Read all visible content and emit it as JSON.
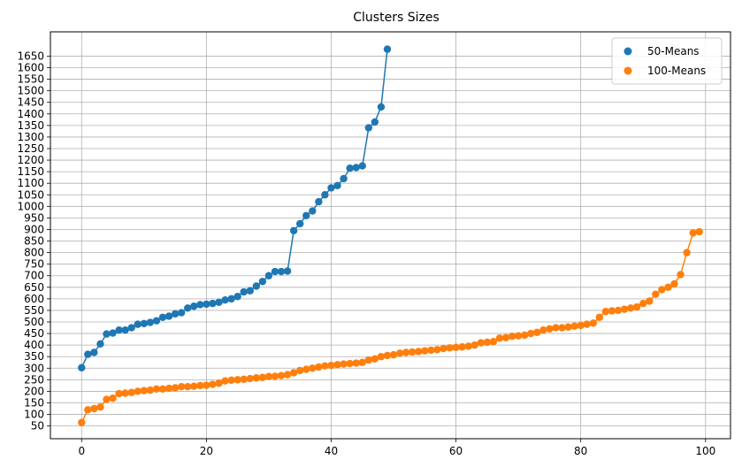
{
  "chart_data": {
    "type": "scatter",
    "title": "Clusters Sizes",
    "xlabel": "",
    "ylabel": "",
    "xlim": [
      -5,
      104
    ],
    "ylim": [
      -5,
      1755
    ],
    "x_ticks": [
      0,
      20,
      40,
      60,
      80,
      100
    ],
    "y_ticks": [
      50,
      100,
      150,
      200,
      250,
      300,
      350,
      400,
      450,
      500,
      550,
      600,
      650,
      700,
      750,
      800,
      850,
      900,
      950,
      1000,
      1050,
      1100,
      1150,
      1200,
      1250,
      1300,
      1350,
      1400,
      1450,
      1500,
      1550,
      1600,
      1650
    ],
    "grid": true,
    "legend_position": "top-right",
    "series": [
      {
        "name": "50-Means",
        "color": "#1f77b4",
        "y": [
          302,
          360,
          368,
          405,
          448,
          452,
          465,
          465,
          475,
          490,
          493,
          498,
          505,
          520,
          525,
          535,
          540,
          560,
          568,
          575,
          577,
          580,
          585,
          595,
          600,
          610,
          630,
          635,
          655,
          675,
          700,
          718,
          718,
          720,
          895,
          925,
          960,
          980,
          1020,
          1050,
          1080,
          1090,
          1120,
          1165,
          1168,
          1175,
          1340,
          1365,
          1430,
          1680
        ]
      },
      {
        "name": "100-Means",
        "color": "#ff7f0e",
        "y": [
          65,
          120,
          125,
          132,
          165,
          170,
          190,
          192,
          195,
          200,
          203,
          205,
          210,
          210,
          213,
          215,
          220,
          220,
          222,
          225,
          226,
          230,
          235,
          245,
          248,
          250,
          252,
          255,
          258,
          260,
          264,
          265,
          268,
          272,
          280,
          290,
          295,
          300,
          305,
          310,
          312,
          315,
          318,
          320,
          322,
          325,
          335,
          340,
          350,
          355,
          358,
          365,
          368,
          370,
          372,
          375,
          378,
          380,
          385,
          388,
          390,
          392,
          395,
          400,
          410,
          412,
          415,
          430,
          432,
          438,
          440,
          443,
          450,
          455,
          465,
          470,
          475,
          475,
          478,
          482,
          485,
          490,
          495,
          520,
          545,
          548,
          550,
          555,
          560,
          565,
          580,
          590,
          620,
          640,
          650,
          665,
          705,
          800,
          885,
          890
        ]
      }
    ]
  }
}
